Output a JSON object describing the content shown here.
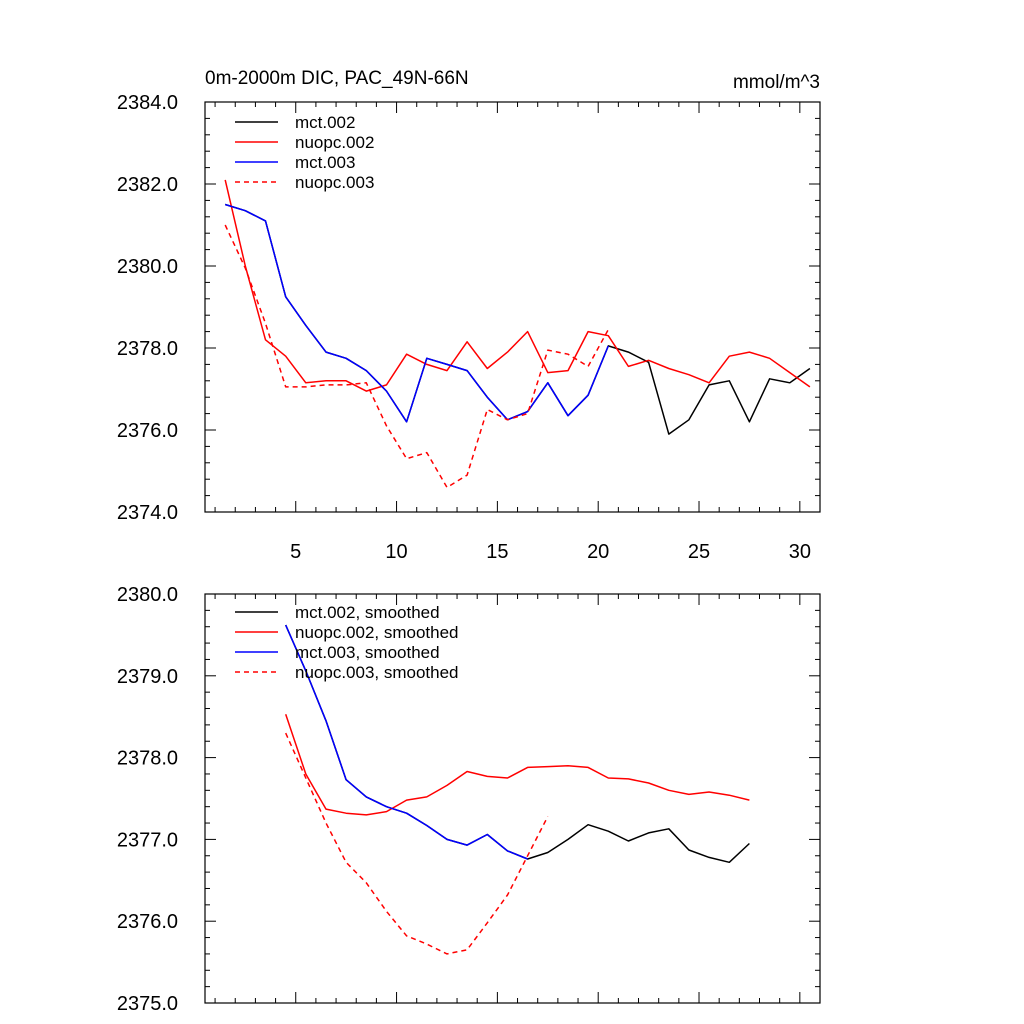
{
  "chart_data": [
    {
      "type": "line",
      "title": "0m-2000m DIC, PAC_49N-66N",
      "units": "mmol/m^3",
      "xlim": [
        0.5,
        31
      ],
      "ylim": [
        2374.0,
        2384.0
      ],
      "x_ticks": [
        5,
        10,
        15,
        20,
        25,
        30
      ],
      "x_tick_labels": [
        "5",
        "10",
        "15",
        "20",
        "25",
        "30"
      ],
      "y_ticks": [
        2374.0,
        2376.0,
        2378.0,
        2380.0,
        2382.0,
        2384.0
      ],
      "y_tick_labels": [
        "2374.0",
        "2376.0",
        "2378.0",
        "2380.0",
        "2382.0",
        "2384.0"
      ],
      "legend": "top-left",
      "series": [
        {
          "name": "mct.002",
          "color": "#000000",
          "dash": "solid",
          "x": [
            1.5,
            2.5,
            3.5,
            4.5,
            5.5,
            6.5,
            7.5,
            8.5,
            9.5,
            10.5,
            11.5,
            12.5,
            13.5,
            14.5,
            15.5,
            16.5,
            17.5,
            18.5,
            19.5,
            20.5,
            21.5,
            22.5,
            23.5,
            24.5,
            25.5,
            26.5,
            27.5,
            28.5,
            29.5,
            30.5
          ],
          "values": [
            2381.5,
            2381.35,
            2381.1,
            2379.25,
            2378.55,
            2377.9,
            2377.75,
            2377.45,
            2376.95,
            2376.2,
            2377.75,
            2377.6,
            2377.45,
            2376.8,
            2376.25,
            2376.45,
            2377.15,
            2376.35,
            2376.85,
            2378.05,
            2377.9,
            2377.65,
            2375.9,
            2376.25,
            2377.1,
            2377.2,
            2376.2,
            2377.25,
            2377.15,
            2377.5
          ]
        },
        {
          "name": "nuopc.002",
          "color": "#ff0000",
          "dash": "solid",
          "x": [
            1.5,
            2.5,
            3.5,
            4.5,
            5.5,
            6.5,
            7.5,
            8.5,
            9.5,
            10.5,
            11.5,
            12.5,
            13.5,
            14.5,
            15.5,
            16.5,
            17.5,
            18.5,
            19.5,
            20.5,
            21.5,
            22.5,
            23.5,
            24.5,
            25.5,
            26.5,
            27.5,
            28.5,
            29.5,
            30.5
          ],
          "values": [
            2382.1,
            2380.0,
            2378.2,
            2377.8,
            2377.15,
            2377.2,
            2377.2,
            2376.95,
            2377.1,
            2377.85,
            2377.6,
            2377.45,
            2378.15,
            2377.5,
            2377.9,
            2378.4,
            2377.4,
            2377.45,
            2378.4,
            2378.3,
            2377.55,
            2377.7,
            2377.5,
            2377.35,
            2377.15,
            2377.8,
            2377.9,
            2377.75,
            2377.4,
            2377.05
          ]
        },
        {
          "name": "mct.003",
          "color": "#0000ff",
          "dash": "solid",
          "x": [
            1.5,
            2.5,
            3.5,
            4.5,
            5.5,
            6.5,
            7.5,
            8.5,
            9.5,
            10.5,
            11.5,
            12.5,
            13.5,
            14.5,
            15.5,
            16.5,
            17.5,
            18.5,
            19.5,
            20.5
          ],
          "values": [
            2381.5,
            2381.35,
            2381.1,
            2379.25,
            2378.55,
            2377.9,
            2377.75,
            2377.45,
            2376.95,
            2376.2,
            2377.75,
            2377.6,
            2377.45,
            2376.8,
            2376.25,
            2376.45,
            2377.15,
            2376.35,
            2376.85,
            2378.05
          ]
        },
        {
          "name": "nuopc.003",
          "color": "#ff0000",
          "dash": "dashed",
          "x": [
            1.5,
            2.5,
            3.5,
            4.5,
            5.5,
            6.5,
            7.5,
            8.5,
            9.5,
            10.5,
            11.5,
            12.5,
            13.5,
            14.5,
            15.5,
            16.5,
            17.5,
            18.5,
            19.5,
            20.5
          ],
          "values": [
            2381.0,
            2379.95,
            2378.6,
            2377.05,
            2377.05,
            2377.1,
            2377.1,
            2377.15,
            2376.1,
            2375.3,
            2375.45,
            2374.6,
            2374.9,
            2376.5,
            2376.25,
            2376.4,
            2377.95,
            2377.85,
            2377.55,
            2378.45
          ]
        }
      ]
    },
    {
      "type": "line",
      "xlim": [
        0.5,
        31
      ],
      "ylim": [
        2375.0,
        2380.0
      ],
      "x_ticks": [
        5,
        10,
        15,
        20,
        25,
        30
      ],
      "y_ticks": [
        2375.0,
        2376.0,
        2377.0,
        2378.0,
        2379.0,
        2380.0
      ],
      "y_tick_labels": [
        "2375.0",
        "2376.0",
        "2377.0",
        "2378.0",
        "2379.0",
        "2380.0"
      ],
      "legend": "top-left",
      "series": [
        {
          "name": "mct.002, smoothed",
          "color": "#000000",
          "dash": "solid",
          "x": [
            4.5,
            5.5,
            6.5,
            7.5,
            8.5,
            9.5,
            10.5,
            11.5,
            12.5,
            13.5,
            14.5,
            15.5,
            16.5,
            17.5,
            18.5,
            19.5,
            20.5,
            21.5,
            22.5,
            23.5,
            24.5,
            25.5,
            26.5,
            27.5
          ],
          "values": [
            2379.62,
            2379.06,
            2378.45,
            2377.73,
            2377.52,
            2377.4,
            2377.32,
            2377.17,
            2377.0,
            2376.93,
            2377.06,
            2376.86,
            2376.76,
            2376.84,
            2377.0,
            2377.18,
            2377.1,
            2376.98,
            2377.08,
            2377.13,
            2376.87,
            2376.78,
            2376.72,
            2376.95
          ]
        },
        {
          "name": "nuopc.002, smoothed",
          "color": "#ff0000",
          "dash": "solid",
          "x": [
            4.5,
            5.5,
            6.5,
            7.5,
            8.5,
            9.5,
            10.5,
            11.5,
            12.5,
            13.5,
            14.5,
            15.5,
            16.5,
            17.5,
            18.5,
            19.5,
            20.5,
            21.5,
            22.5,
            23.5,
            24.5,
            25.5,
            26.5,
            27.5
          ],
          "values": [
            2378.53,
            2377.8,
            2377.37,
            2377.32,
            2377.3,
            2377.34,
            2377.48,
            2377.52,
            2377.66,
            2377.83,
            2377.77,
            2377.75,
            2377.88,
            2377.89,
            2377.9,
            2377.88,
            2377.75,
            2377.74,
            2377.69,
            2377.6,
            2377.55,
            2377.58,
            2377.54,
            2377.48
          ]
        },
        {
          "name": "mct.003, smoothed",
          "color": "#0000ff",
          "dash": "solid",
          "x": [
            4.5,
            5.5,
            6.5,
            7.5,
            8.5,
            9.5,
            10.5,
            11.5,
            12.5,
            13.5,
            14.5,
            15.5,
            16.5
          ],
          "values": [
            2379.62,
            2379.06,
            2378.45,
            2377.73,
            2377.52,
            2377.4,
            2377.32,
            2377.17,
            2377.0,
            2376.93,
            2377.06,
            2376.86,
            2376.76
          ]
        },
        {
          "name": "nuopc.003, smoothed",
          "color": "#ff0000",
          "dash": "dashed",
          "x": [
            4.5,
            5.5,
            6.5,
            7.5,
            8.5,
            9.5,
            10.5,
            11.5,
            12.5,
            13.5,
            14.5,
            15.5,
            16.5,
            17.5
          ],
          "values": [
            2378.3,
            2377.75,
            2377.2,
            2376.72,
            2376.47,
            2376.12,
            2375.82,
            2375.72,
            2375.6,
            2375.65,
            2375.98,
            2376.32,
            2376.8,
            2377.28
          ]
        }
      ]
    }
  ]
}
